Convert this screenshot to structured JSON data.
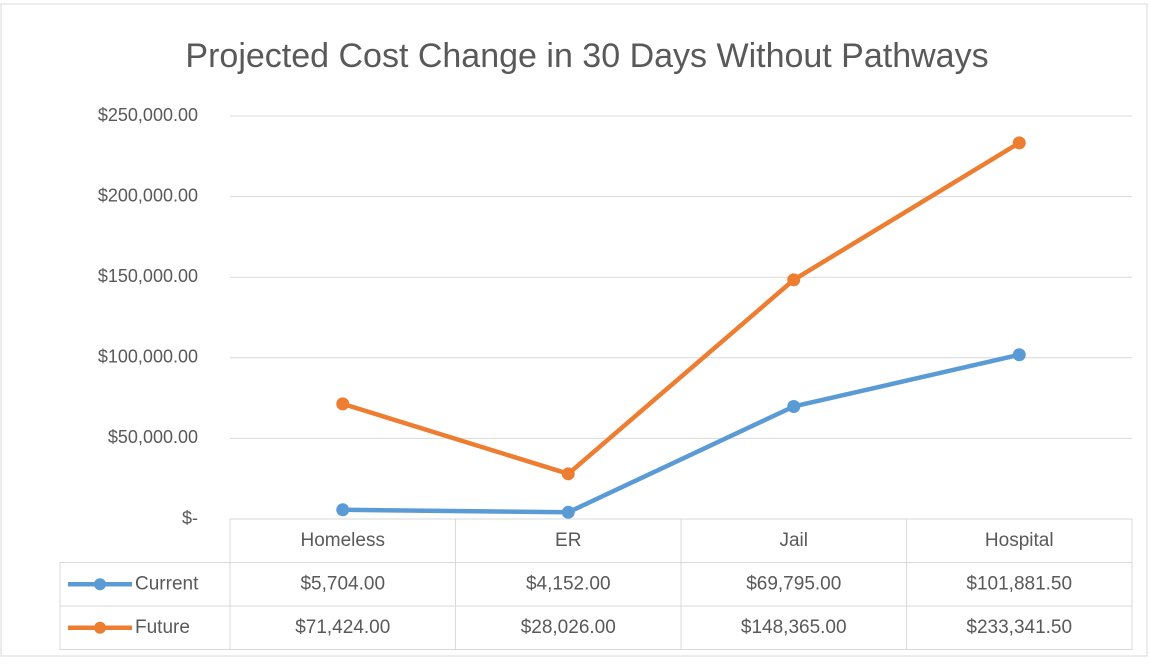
{
  "chart_data": {
    "type": "line",
    "title": "Projected Cost Change in 30 Days Without Pathways",
    "categories": [
      "Homeless",
      "ER",
      "Jail",
      "Hospital"
    ],
    "series": [
      {
        "name": "Current",
        "color": "#5b9bd5",
        "values": [
          5704,
          4152,
          69795,
          101881.5
        ],
        "value_labels": [
          "$5,704.00",
          "$4,152.00",
          "$69,795.00",
          "$101,881.50"
        ]
      },
      {
        "name": "Future",
        "color": "#ed7d31",
        "values": [
          71424,
          28026,
          148365,
          233341.5
        ],
        "value_labels": [
          "$71,424.00",
          "$28,026.00",
          "$148,365.00",
          "$233,341.50"
        ]
      }
    ],
    "ylim": [
      0,
      250000
    ],
    "yticks": [
      {
        "value": 0,
        "label": "$-"
      },
      {
        "value": 50000,
        "label": "$50,000.00"
      },
      {
        "value": 100000,
        "label": "$100,000.00"
      },
      {
        "value": 150000,
        "label": "$150,000.00"
      },
      {
        "value": 200000,
        "label": "$200,000.00"
      },
      {
        "value": 250000,
        "label": "$250,000.00"
      }
    ],
    "grid": true,
    "data_table": true
  }
}
